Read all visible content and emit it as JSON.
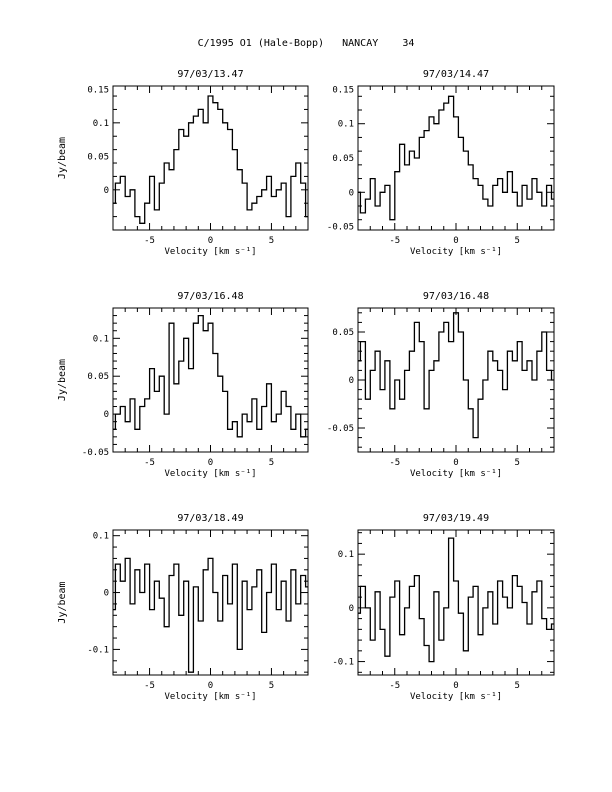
{
  "page": {
    "title": "C/1995 O1 (Hale-Bopp)   NANCAY    34"
  },
  "chart_data": [
    {
      "type": "line",
      "title": "97/03/13.47",
      "xlabel": "Velocity [km s⁻¹]",
      "ylabel": "Jy/beam",
      "xlim": [
        -8,
        8
      ],
      "ylim": [
        -0.06,
        0.155
      ],
      "xticks": [
        -5,
        0,
        5
      ],
      "yticks": [
        0,
        0.05,
        0.1,
        0.15
      ],
      "ytick_labels": [
        "0",
        "0.05",
        "0.1",
        "0.15"
      ],
      "series": [
        {
          "x": [
            -8.0,
            -7.6,
            -7.2,
            -6.8,
            -6.4,
            -6.0,
            -5.6,
            -5.2,
            -4.8,
            -4.4,
            -4.0,
            -3.6,
            -3.2,
            -2.8,
            -2.4,
            -2.0,
            -1.6,
            -1.2,
            -0.8,
            -0.4,
            0.0,
            0.4,
            0.8,
            1.2,
            1.6,
            2.0,
            2.4,
            2.8,
            3.2,
            3.6,
            4.0,
            4.4,
            4.8,
            5.2,
            5.6,
            6.0,
            6.4,
            6.8,
            7.2,
            7.6,
            8.0
          ],
          "y": [
            -0.02,
            0.01,
            0.02,
            -0.01,
            0.0,
            -0.04,
            -0.05,
            -0.02,
            0.02,
            -0.03,
            0.01,
            0.04,
            0.03,
            0.06,
            0.09,
            0.08,
            0.1,
            0.11,
            0.12,
            0.1,
            0.14,
            0.13,
            0.12,
            0.1,
            0.09,
            0.06,
            0.03,
            0.01,
            -0.03,
            -0.02,
            -0.01,
            0.0,
            0.02,
            -0.01,
            0.0,
            0.01,
            -0.04,
            0.02,
            0.04,
            0.01,
            -0.04
          ]
        }
      ]
    },
    {
      "type": "line",
      "title": "97/03/14.47",
      "xlabel": "Velocity [km s⁻¹]",
      "ylabel": "",
      "xlim": [
        -8,
        8
      ],
      "ylim": [
        -0.055,
        0.155
      ],
      "xticks": [
        -5,
        0,
        5
      ],
      "yticks": [
        -0.05,
        0,
        0.05,
        0.1,
        0.15
      ],
      "ytick_labels": [
        "-0.05",
        "0",
        "0.05",
        "0.1",
        "0.15"
      ],
      "series": [
        {
          "x": [
            -8.0,
            -7.6,
            -7.2,
            -6.8,
            -6.4,
            -6.0,
            -5.6,
            -5.2,
            -4.8,
            -4.4,
            -4.0,
            -3.6,
            -3.2,
            -2.8,
            -2.4,
            -2.0,
            -1.6,
            -1.2,
            -0.8,
            -0.4,
            0.0,
            0.4,
            0.8,
            1.2,
            1.6,
            2.0,
            2.4,
            2.8,
            3.2,
            3.6,
            4.0,
            4.4,
            4.8,
            5.2,
            5.6,
            6.0,
            6.4,
            6.8,
            7.2,
            7.6,
            8.0
          ],
          "y": [
            0.0,
            -0.03,
            -0.01,
            0.02,
            -0.02,
            0.0,
            0.01,
            -0.04,
            0.03,
            0.07,
            0.04,
            0.06,
            0.05,
            0.08,
            0.09,
            0.11,
            0.1,
            0.12,
            0.13,
            0.14,
            0.11,
            0.08,
            0.06,
            0.04,
            0.02,
            0.01,
            -0.01,
            -0.02,
            0.01,
            0.02,
            0.0,
            0.03,
            0.0,
            -0.02,
            0.01,
            -0.01,
            0.02,
            0.0,
            -0.02,
            0.01,
            -0.01
          ]
        }
      ]
    },
    {
      "type": "line",
      "title": "97/03/16.48",
      "xlabel": "Velocity [km s⁻¹]",
      "ylabel": "Jy/beam",
      "xlim": [
        -8,
        8
      ],
      "ylim": [
        -0.05,
        0.14
      ],
      "xticks": [
        -5,
        0,
        5
      ],
      "yticks": [
        -0.05,
        0,
        0.05,
        0.1
      ],
      "ytick_labels": [
        "-0.05",
        "0",
        "0.05",
        "0.1"
      ],
      "series": [
        {
          "x": [
            -8.0,
            -7.6,
            -7.2,
            -6.8,
            -6.4,
            -6.0,
            -5.6,
            -5.2,
            -4.8,
            -4.4,
            -4.0,
            -3.6,
            -3.2,
            -2.8,
            -2.4,
            -2.0,
            -1.6,
            -1.2,
            -0.8,
            -0.4,
            0.0,
            0.4,
            0.8,
            1.2,
            1.6,
            2.0,
            2.4,
            2.8,
            3.2,
            3.6,
            4.0,
            4.4,
            4.8,
            5.2,
            5.6,
            6.0,
            6.4,
            6.8,
            7.2,
            7.6,
            8.0
          ],
          "y": [
            -0.02,
            0.0,
            0.01,
            -0.01,
            0.02,
            -0.02,
            0.01,
            0.02,
            0.06,
            0.03,
            0.05,
            0.0,
            0.12,
            0.04,
            0.07,
            0.1,
            0.06,
            0.12,
            0.13,
            0.11,
            0.12,
            0.08,
            0.05,
            0.03,
            -0.02,
            -0.01,
            -0.03,
            0.0,
            -0.01,
            0.02,
            -0.02,
            0.01,
            0.04,
            -0.01,
            0.0,
            0.03,
            0.01,
            -0.02,
            0.0,
            -0.03,
            -0.02
          ]
        }
      ]
    },
    {
      "type": "line",
      "title": "97/03/16.48",
      "xlabel": "Velocity [km s⁻¹]",
      "ylabel": "",
      "xlim": [
        -8,
        8
      ],
      "ylim": [
        -0.075,
        0.075
      ],
      "xticks": [
        -5,
        0,
        5
      ],
      "yticks": [
        -0.05,
        0,
        0.05
      ],
      "ytick_labels": [
        "-0.05",
        "0",
        "0.05"
      ],
      "series": [
        {
          "x": [
            -8.0,
            -7.6,
            -7.2,
            -6.8,
            -6.4,
            -6.0,
            -5.6,
            -5.2,
            -4.8,
            -4.4,
            -4.0,
            -3.6,
            -3.2,
            -2.8,
            -2.4,
            -2.0,
            -1.6,
            -1.2,
            -0.8,
            -0.4,
            0.0,
            0.4,
            0.8,
            1.2,
            1.6,
            2.0,
            2.4,
            2.8,
            3.2,
            3.6,
            4.0,
            4.4,
            4.8,
            5.2,
            5.6,
            6.0,
            6.4,
            6.8,
            7.2,
            7.6,
            8.0
          ],
          "y": [
            0.02,
            0.04,
            -0.02,
            0.01,
            0.03,
            -0.01,
            0.02,
            -0.03,
            0.0,
            -0.02,
            0.01,
            0.03,
            0.06,
            0.04,
            -0.03,
            0.01,
            0.02,
            0.05,
            0.06,
            0.04,
            0.07,
            0.05,
            0.0,
            -0.03,
            -0.06,
            -0.02,
            0.0,
            0.03,
            0.02,
            0.01,
            -0.01,
            0.03,
            0.02,
            0.04,
            0.01,
            0.02,
            0.0,
            0.03,
            0.05,
            0.01,
            0.0
          ]
        }
      ]
    },
    {
      "type": "line",
      "title": "97/03/18.49",
      "xlabel": "Velocity [km s⁻¹]",
      "ylabel": "Jy/beam",
      "xlim": [
        -8,
        8
      ],
      "ylim": [
        -0.145,
        0.11
      ],
      "xticks": [
        -5,
        0,
        5
      ],
      "yticks": [
        -0.1,
        0,
        0.1
      ],
      "ytick_labels": [
        "-0.1",
        "0",
        "0.1"
      ],
      "series": [
        {
          "x": [
            -8.0,
            -7.6,
            -7.2,
            -6.8,
            -6.4,
            -6.0,
            -5.6,
            -5.2,
            -4.8,
            -4.4,
            -4.0,
            -3.6,
            -3.2,
            -2.8,
            -2.4,
            -2.0,
            -1.6,
            -1.2,
            -0.8,
            -0.4,
            0.0,
            0.4,
            0.8,
            1.2,
            1.6,
            2.0,
            2.4,
            2.8,
            3.2,
            3.6,
            4.0,
            4.4,
            4.8,
            5.2,
            5.6,
            6.0,
            6.4,
            6.8,
            7.2,
            7.6,
            8.0
          ],
          "y": [
            -0.03,
            0.05,
            0.02,
            0.06,
            -0.02,
            0.04,
            0.0,
            0.05,
            -0.03,
            0.02,
            -0.01,
            -0.06,
            0.03,
            0.05,
            -0.04,
            0.02,
            -0.14,
            0.01,
            -0.05,
            0.04,
            0.06,
            0.0,
            -0.05,
            0.03,
            -0.02,
            0.05,
            -0.1,
            0.02,
            -0.03,
            0.01,
            0.04,
            -0.07,
            0.0,
            0.05,
            -0.03,
            0.02,
            -0.05,
            0.04,
            -0.02,
            0.03,
            0.01
          ]
        }
      ]
    },
    {
      "type": "line",
      "title": "97/03/19.49",
      "xlabel": "Velocity [km s⁻¹]",
      "ylabel": "",
      "xlim": [
        -8,
        8
      ],
      "ylim": [
        -0.125,
        0.145
      ],
      "xticks": [
        -5,
        0,
        5
      ],
      "yticks": [
        -0.1,
        0,
        0.1
      ],
      "ytick_labels": [
        "-0.1",
        "0",
        "0.1"
      ],
      "series": [
        {
          "x": [
            -8.0,
            -7.6,
            -7.2,
            -6.8,
            -6.4,
            -6.0,
            -5.6,
            -5.2,
            -4.8,
            -4.4,
            -4.0,
            -3.6,
            -3.2,
            -2.8,
            -2.4,
            -2.0,
            -1.6,
            -1.2,
            -0.8,
            -0.4,
            0.0,
            0.4,
            0.8,
            1.2,
            1.6,
            2.0,
            2.4,
            2.8,
            3.2,
            3.6,
            4.0,
            4.4,
            4.8,
            5.2,
            5.6,
            6.0,
            6.4,
            6.8,
            7.2,
            7.6,
            8.0
          ],
          "y": [
            -0.01,
            0.04,
            0.0,
            -0.06,
            0.03,
            -0.04,
            -0.09,
            0.02,
            0.05,
            -0.05,
            0.0,
            0.04,
            0.06,
            -0.02,
            -0.07,
            -0.1,
            0.03,
            -0.06,
            0.0,
            0.13,
            0.05,
            -0.01,
            -0.08,
            0.02,
            0.04,
            -0.05,
            0.0,
            0.03,
            -0.03,
            0.05,
            0.02,
            0.0,
            0.06,
            0.04,
            0.01,
            -0.03,
            0.03,
            0.05,
            -0.02,
            -0.04,
            -0.03
          ]
        }
      ]
    }
  ]
}
